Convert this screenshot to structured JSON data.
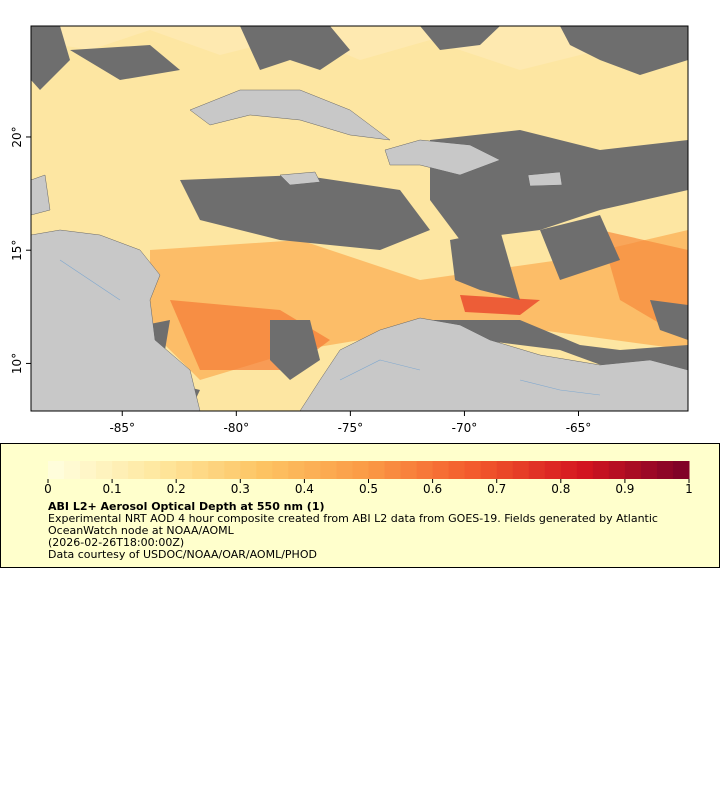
{
  "map": {
    "xlim": [
      -89,
      -60.2
    ],
    "ylim": [
      7.9,
      24.9
    ],
    "xticks": [
      {
        "value": -85,
        "label": "-85°"
      },
      {
        "value": -80,
        "label": "-80°"
      },
      {
        "value": -75,
        "label": "-75°"
      },
      {
        "value": -70,
        "label": "-70°"
      },
      {
        "value": -65,
        "label": "-65°"
      }
    ],
    "yticks": [
      {
        "value": 10,
        "label": "10°"
      },
      {
        "value": 15,
        "label": "15°"
      },
      {
        "value": 20,
        "label": "20°"
      }
    ]
  },
  "legend": {
    "colorbar": {
      "lim": [
        0,
        1
      ],
      "ticks": [
        0,
        0.1,
        0.2,
        0.3,
        0.4,
        0.5,
        0.6,
        0.7,
        0.8,
        0.9,
        1
      ],
      "colors": [
        "#ffffe0",
        "#fee8a0",
        "#fdc463",
        "#fb9a45",
        "#f3592c",
        "#d4161f",
        "#7a0028"
      ]
    },
    "title": "ABI L2+ Aerosol Optical Depth at 550 nm (1)",
    "lines": [
      "Experimental NRT AOD 4 hour composite created from ABI L2 data from GOES-19. Fields generated by Atlantic OceanWatch node at NOAA/AOML",
      "(2026-02-26T18:00:00Z)",
      "Data courtesy of USDOC/NOAA/OAR/AOML/PHOD"
    ]
  }
}
